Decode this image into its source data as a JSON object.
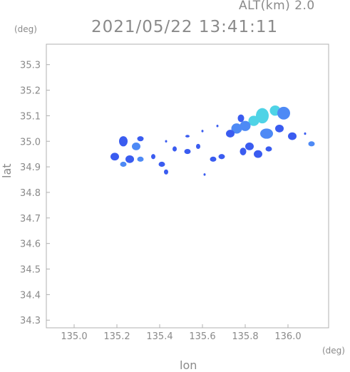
{
  "header": {
    "altitude": "ALT(km) 2.0",
    "timestamp": "2021/05/22 13:41:11"
  },
  "axes": {
    "y_unit": "(deg)",
    "x_unit": "(deg)",
    "xlabel": "lon",
    "ylabel": "lat"
  },
  "chart_data": {
    "type": "heatmap",
    "xlim": [
      134.87,
      136.19
    ],
    "ylim": [
      34.27,
      35.38
    ],
    "x_ticks": [
      "135.0",
      "135.2",
      "135.4",
      "135.6",
      "135.8",
      "136.0"
    ],
    "x_tick_values": [
      135.0,
      135.2,
      135.4,
      135.6,
      135.8,
      136.0
    ],
    "y_ticks": [
      "35.3",
      "35.2",
      "35.1",
      "35.0",
      "34.9",
      "34.8",
      "34.7",
      "34.6",
      "34.5",
      "34.4",
      "34.3"
    ],
    "y_tick_values": [
      35.3,
      35.2,
      35.1,
      35.0,
      34.9,
      34.8,
      34.7,
      34.6,
      34.5,
      34.4,
      34.3
    ],
    "colors": {
      "low": "#3a5cf0",
      "mid": "#4e8af5",
      "high": "#4fd3e6",
      "axis": "#b0b0b0"
    },
    "echo_cells": [
      {
        "lon": 135.88,
        "lat": 35.1,
        "w": 0.06,
        "h": 0.06,
        "level": 2
      },
      {
        "lon": 135.94,
        "lat": 35.12,
        "w": 0.05,
        "h": 0.04,
        "level": 2
      },
      {
        "lon": 135.98,
        "lat": 35.11,
        "w": 0.06,
        "h": 0.05,
        "level": 1
      },
      {
        "lon": 135.84,
        "lat": 35.08,
        "w": 0.05,
        "h": 0.04,
        "level": 2
      },
      {
        "lon": 135.8,
        "lat": 35.06,
        "w": 0.05,
        "h": 0.04,
        "level": 1
      },
      {
        "lon": 135.76,
        "lat": 35.05,
        "w": 0.05,
        "h": 0.04,
        "level": 1
      },
      {
        "lon": 135.73,
        "lat": 35.03,
        "w": 0.04,
        "h": 0.03,
        "level": 0
      },
      {
        "lon": 135.78,
        "lat": 35.09,
        "w": 0.03,
        "h": 0.03,
        "level": 0
      },
      {
        "lon": 135.9,
        "lat": 35.03,
        "w": 0.06,
        "h": 0.04,
        "level": 1
      },
      {
        "lon": 135.96,
        "lat": 35.05,
        "w": 0.04,
        "h": 0.03,
        "level": 0
      },
      {
        "lon": 136.02,
        "lat": 35.02,
        "w": 0.04,
        "h": 0.03,
        "level": 0
      },
      {
        "lon": 136.11,
        "lat": 34.99,
        "w": 0.03,
        "h": 0.02,
        "level": 1
      },
      {
        "lon": 135.82,
        "lat": 34.98,
        "w": 0.04,
        "h": 0.03,
        "level": 0
      },
      {
        "lon": 135.86,
        "lat": 34.95,
        "w": 0.04,
        "h": 0.03,
        "level": 0
      },
      {
        "lon": 135.79,
        "lat": 34.96,
        "w": 0.03,
        "h": 0.03,
        "level": 0
      },
      {
        "lon": 135.69,
        "lat": 34.94,
        "w": 0.03,
        "h": 0.02,
        "level": 0
      },
      {
        "lon": 135.65,
        "lat": 34.93,
        "w": 0.03,
        "h": 0.02,
        "level": 0
      },
      {
        "lon": 135.91,
        "lat": 34.97,
        "w": 0.03,
        "h": 0.02,
        "level": 0
      },
      {
        "lon": 135.58,
        "lat": 34.98,
        "w": 0.02,
        "h": 0.02,
        "level": 0
      },
      {
        "lon": 135.53,
        "lat": 34.96,
        "w": 0.03,
        "h": 0.02,
        "level": 0
      },
      {
        "lon": 135.47,
        "lat": 34.97,
        "w": 0.02,
        "h": 0.02,
        "level": 0
      },
      {
        "lon": 135.23,
        "lat": 35.0,
        "w": 0.04,
        "h": 0.04,
        "level": 0
      },
      {
        "lon": 135.29,
        "lat": 34.98,
        "w": 0.04,
        "h": 0.03,
        "level": 1
      },
      {
        "lon": 135.19,
        "lat": 34.94,
        "w": 0.04,
        "h": 0.03,
        "level": 0
      },
      {
        "lon": 135.26,
        "lat": 34.93,
        "w": 0.04,
        "h": 0.03,
        "level": 0
      },
      {
        "lon": 135.31,
        "lat": 34.93,
        "w": 0.03,
        "h": 0.02,
        "level": 1
      },
      {
        "lon": 135.23,
        "lat": 34.91,
        "w": 0.03,
        "h": 0.02,
        "level": 1
      },
      {
        "lon": 135.41,
        "lat": 34.91,
        "w": 0.03,
        "h": 0.02,
        "level": 0
      },
      {
        "lon": 135.43,
        "lat": 34.88,
        "w": 0.02,
        "h": 0.02,
        "level": 0
      },
      {
        "lon": 135.37,
        "lat": 34.94,
        "w": 0.02,
        "h": 0.02,
        "level": 0
      },
      {
        "lon": 135.31,
        "lat": 35.01,
        "w": 0.03,
        "h": 0.02,
        "level": 0
      },
      {
        "lon": 135.43,
        "lat": 35.0,
        "w": 0.01,
        "h": 0.01,
        "level": 0
      },
      {
        "lon": 135.53,
        "lat": 35.02,
        "w": 0.02,
        "h": 0.01,
        "level": 0
      },
      {
        "lon": 135.6,
        "lat": 35.04,
        "w": 0.01,
        "h": 0.01,
        "level": 0
      },
      {
        "lon": 135.67,
        "lat": 35.06,
        "w": 0.01,
        "h": 0.01,
        "level": 0
      },
      {
        "lon": 136.08,
        "lat": 35.03,
        "w": 0.01,
        "h": 0.01,
        "level": 0
      },
      {
        "lon": 135.61,
        "lat": 34.87,
        "w": 0.01,
        "h": 0.01,
        "level": 0
      }
    ]
  }
}
